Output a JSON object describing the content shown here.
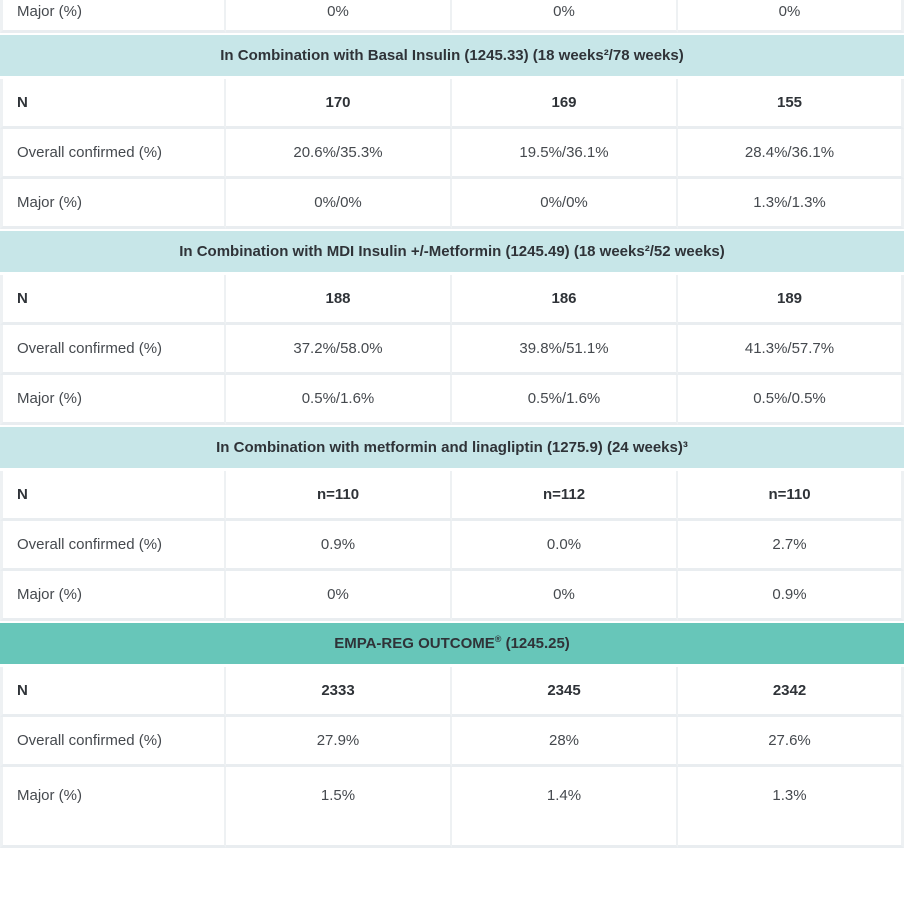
{
  "table": {
    "description": "Hypoglycemia rates across clinical trials table (partially scrolled)",
    "colors": {
      "section_light_bg": "#c7e6e8",
      "section_dark_bg": "#67c6b9",
      "row_border": "#e9edf0",
      "col_border": "#eef1f3",
      "text": "#45494e",
      "bold_text": "#2f3338"
    },
    "rows": [
      {
        "type": "data",
        "partial": true,
        "label": "Major (%)",
        "values": [
          "0%",
          "0%",
          "0%"
        ]
      },
      {
        "type": "section",
        "style": "light",
        "label": "In Combination with Basal Insulin (1245.33) (18 weeks²/78 weeks)"
      },
      {
        "type": "data",
        "values_bold": true,
        "label": "N",
        "values": [
          "170",
          "169",
          "155"
        ]
      },
      {
        "type": "data",
        "label": "Overall confirmed (%)",
        "values": [
          "20.6%/35.3%",
          "19.5%/36.1%",
          "28.4%/36.1%"
        ]
      },
      {
        "type": "data",
        "label": "Major (%)",
        "values": [
          "0%/0%",
          "0%/0%",
          "1.3%/1.3%"
        ]
      },
      {
        "type": "section",
        "style": "light",
        "label": "In Combination with MDI Insulin +/-Metformin (1245.49) (18 weeks²/52 weeks)"
      },
      {
        "type": "data",
        "values_bold": true,
        "label": "N",
        "values": [
          "188",
          "186",
          "189"
        ]
      },
      {
        "type": "data",
        "label": "Overall confirmed (%)",
        "values": [
          "37.2%/58.0%",
          "39.8%/51.1%",
          "41.3%/57.7%"
        ]
      },
      {
        "type": "data",
        "label": "Major (%)",
        "values": [
          "0.5%/1.6%",
          "0.5%/1.6%",
          "0.5%/0.5%"
        ]
      },
      {
        "type": "section",
        "style": "light",
        "label": "In Combination with metformin and linagliptin (1275.9) (24 weeks)³"
      },
      {
        "type": "data",
        "values_bold": true,
        "label": "N",
        "values": [
          "n=110",
          "n=112",
          "n=110"
        ]
      },
      {
        "type": "data",
        "label": "Overall confirmed (%)",
        "values": [
          "0.9%",
          "0.0%",
          "2.7%"
        ]
      },
      {
        "type": "data",
        "label": "Major (%)",
        "values": [
          "0%",
          "0%",
          "0.9%"
        ]
      },
      {
        "type": "section",
        "style": "dark",
        "label": "EMPA-REG OUTCOME® (1245.25)"
      },
      {
        "type": "data",
        "values_bold": true,
        "label": "N",
        "values": [
          "2333",
          "2345",
          "2342"
        ]
      },
      {
        "type": "data",
        "label": "Overall confirmed (%)",
        "values": [
          "27.9%",
          "28%",
          "27.6%"
        ]
      },
      {
        "type": "data",
        "tall": true,
        "label": "Major (%)",
        "values": [
          "1.5%",
          "1.4%",
          "1.3%"
        ]
      }
    ]
  }
}
